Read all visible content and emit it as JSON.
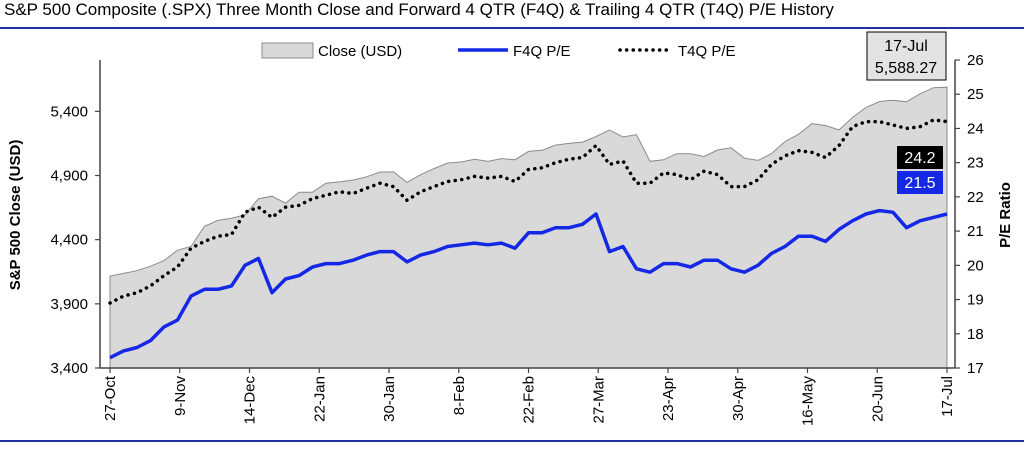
{
  "header": {
    "title": "S&P 500 Composite (.SPX) Three Month Close and Forward 4 QTR (F4Q) & Trailing 4 QTR (T4Q) P/E History"
  },
  "colors": {
    "area_fill": "#d9d9d9",
    "area_stroke": "#8c8c8c",
    "f4q_line": "#1428e6",
    "t4q_line": "#000000",
    "rule": "#1f2f9f",
    "callout_t4q_bg": "#000000",
    "callout_f4q_bg": "#1428e6",
    "date_box_bg": "#e3e3e3"
  },
  "chart_data": {
    "type": "area",
    "title": "S&P 500 Composite (.SPX) Three Month Close and Forward 4 QTR (F4Q) & Trailing 4 QTR (T4Q) P/E History",
    "ylabel": "S&P 500 Close (USD)",
    "y2label": "P/E Ratio",
    "ylim": [
      3400,
      5800
    ],
    "y2lim": [
      17,
      26
    ],
    "y_ticks": [
      "3,400",
      "3,900",
      "4,400",
      "4,900",
      "5,400"
    ],
    "y2_ticks": [
      "17",
      "18",
      "19",
      "20",
      "21",
      "22",
      "23",
      "24",
      "25",
      "26"
    ],
    "x_tick_labels": [
      "27-Oct",
      "9-Nov",
      "14-Dec",
      "22-Jan",
      "30-Jan",
      "8-Feb",
      "22-Feb",
      "27-Mar",
      "23-Apr",
      "30-Apr",
      "16-May",
      "20-Jun",
      "17-Jul"
    ],
    "legend": [
      "Close (USD)",
      "F4Q P/E",
      "T4Q P/E"
    ],
    "legend_position": "top",
    "grid": false,
    "series": [
      {
        "name": "Close (USD)",
        "axis": "left",
        "style": "area",
        "values": [
          4117,
          4137,
          4158,
          4193,
          4237,
          4318,
          4347,
          4504,
          4550,
          4567,
          4594,
          4719,
          4739,
          4685,
          4770,
          4770,
          4840,
          4850,
          4864,
          4890,
          4927,
          4928,
          4846,
          4906,
          4954,
          4997,
          5005,
          5026,
          5010,
          5032,
          5022,
          5088,
          5096,
          5137,
          5150,
          5160,
          5204,
          5254,
          5200,
          5218,
          5011,
          5022,
          5071,
          5070,
          5048,
          5099,
          5116,
          5035,
          5018,
          5071,
          5165,
          5221,
          5304,
          5290,
          5255,
          5352,
          5431,
          5477,
          5487,
          5474,
          5537,
          5584,
          5588
        ]
      },
      {
        "name": "F4Q P/E",
        "axis": "right",
        "style": "line",
        "values": [
          17.3,
          17.5,
          17.6,
          17.8,
          18.2,
          18.4,
          19.1,
          19.3,
          19.3,
          19.4,
          20.0,
          20.2,
          19.2,
          19.6,
          19.7,
          19.95,
          20.05,
          20.05,
          20.15,
          20.3,
          20.4,
          20.4,
          20.1,
          20.3,
          20.4,
          20.55,
          20.6,
          20.65,
          20.6,
          20.65,
          20.5,
          20.95,
          20.95,
          21.1,
          21.1,
          21.2,
          21.5,
          20.4,
          20.55,
          19.9,
          19.8,
          20.05,
          20.05,
          19.95,
          20.15,
          20.15,
          19.9,
          19.8,
          20.0,
          20.35,
          20.55,
          20.85,
          20.85,
          20.7,
          21.05,
          21.3,
          21.5,
          21.6,
          21.55,
          21.1,
          21.3,
          21.4,
          21.5
        ]
      },
      {
        "name": "T4Q P/E",
        "axis": "right",
        "style": "dotted",
        "values": [
          18.9,
          19.1,
          19.2,
          19.4,
          19.7,
          19.95,
          20.5,
          20.7,
          20.85,
          20.9,
          21.55,
          21.7,
          21.4,
          21.7,
          21.75,
          21.95,
          22.05,
          22.15,
          22.1,
          22.25,
          22.4,
          22.3,
          21.9,
          22.15,
          22.3,
          22.45,
          22.5,
          22.6,
          22.55,
          22.6,
          22.45,
          22.8,
          22.85,
          23.0,
          23.1,
          23.15,
          23.5,
          22.95,
          23.05,
          22.4,
          22.4,
          22.7,
          22.65,
          22.5,
          22.75,
          22.65,
          22.3,
          22.3,
          22.5,
          22.95,
          23.2,
          23.35,
          23.3,
          23.15,
          23.5,
          24.05,
          24.2,
          24.2,
          24.1,
          24.0,
          24.05,
          24.25,
          24.2
        ]
      }
    ],
    "callouts": {
      "date": "17-Jul",
      "close": "5,588.27",
      "t4q": "24.2",
      "f4q": "21.5"
    }
  }
}
